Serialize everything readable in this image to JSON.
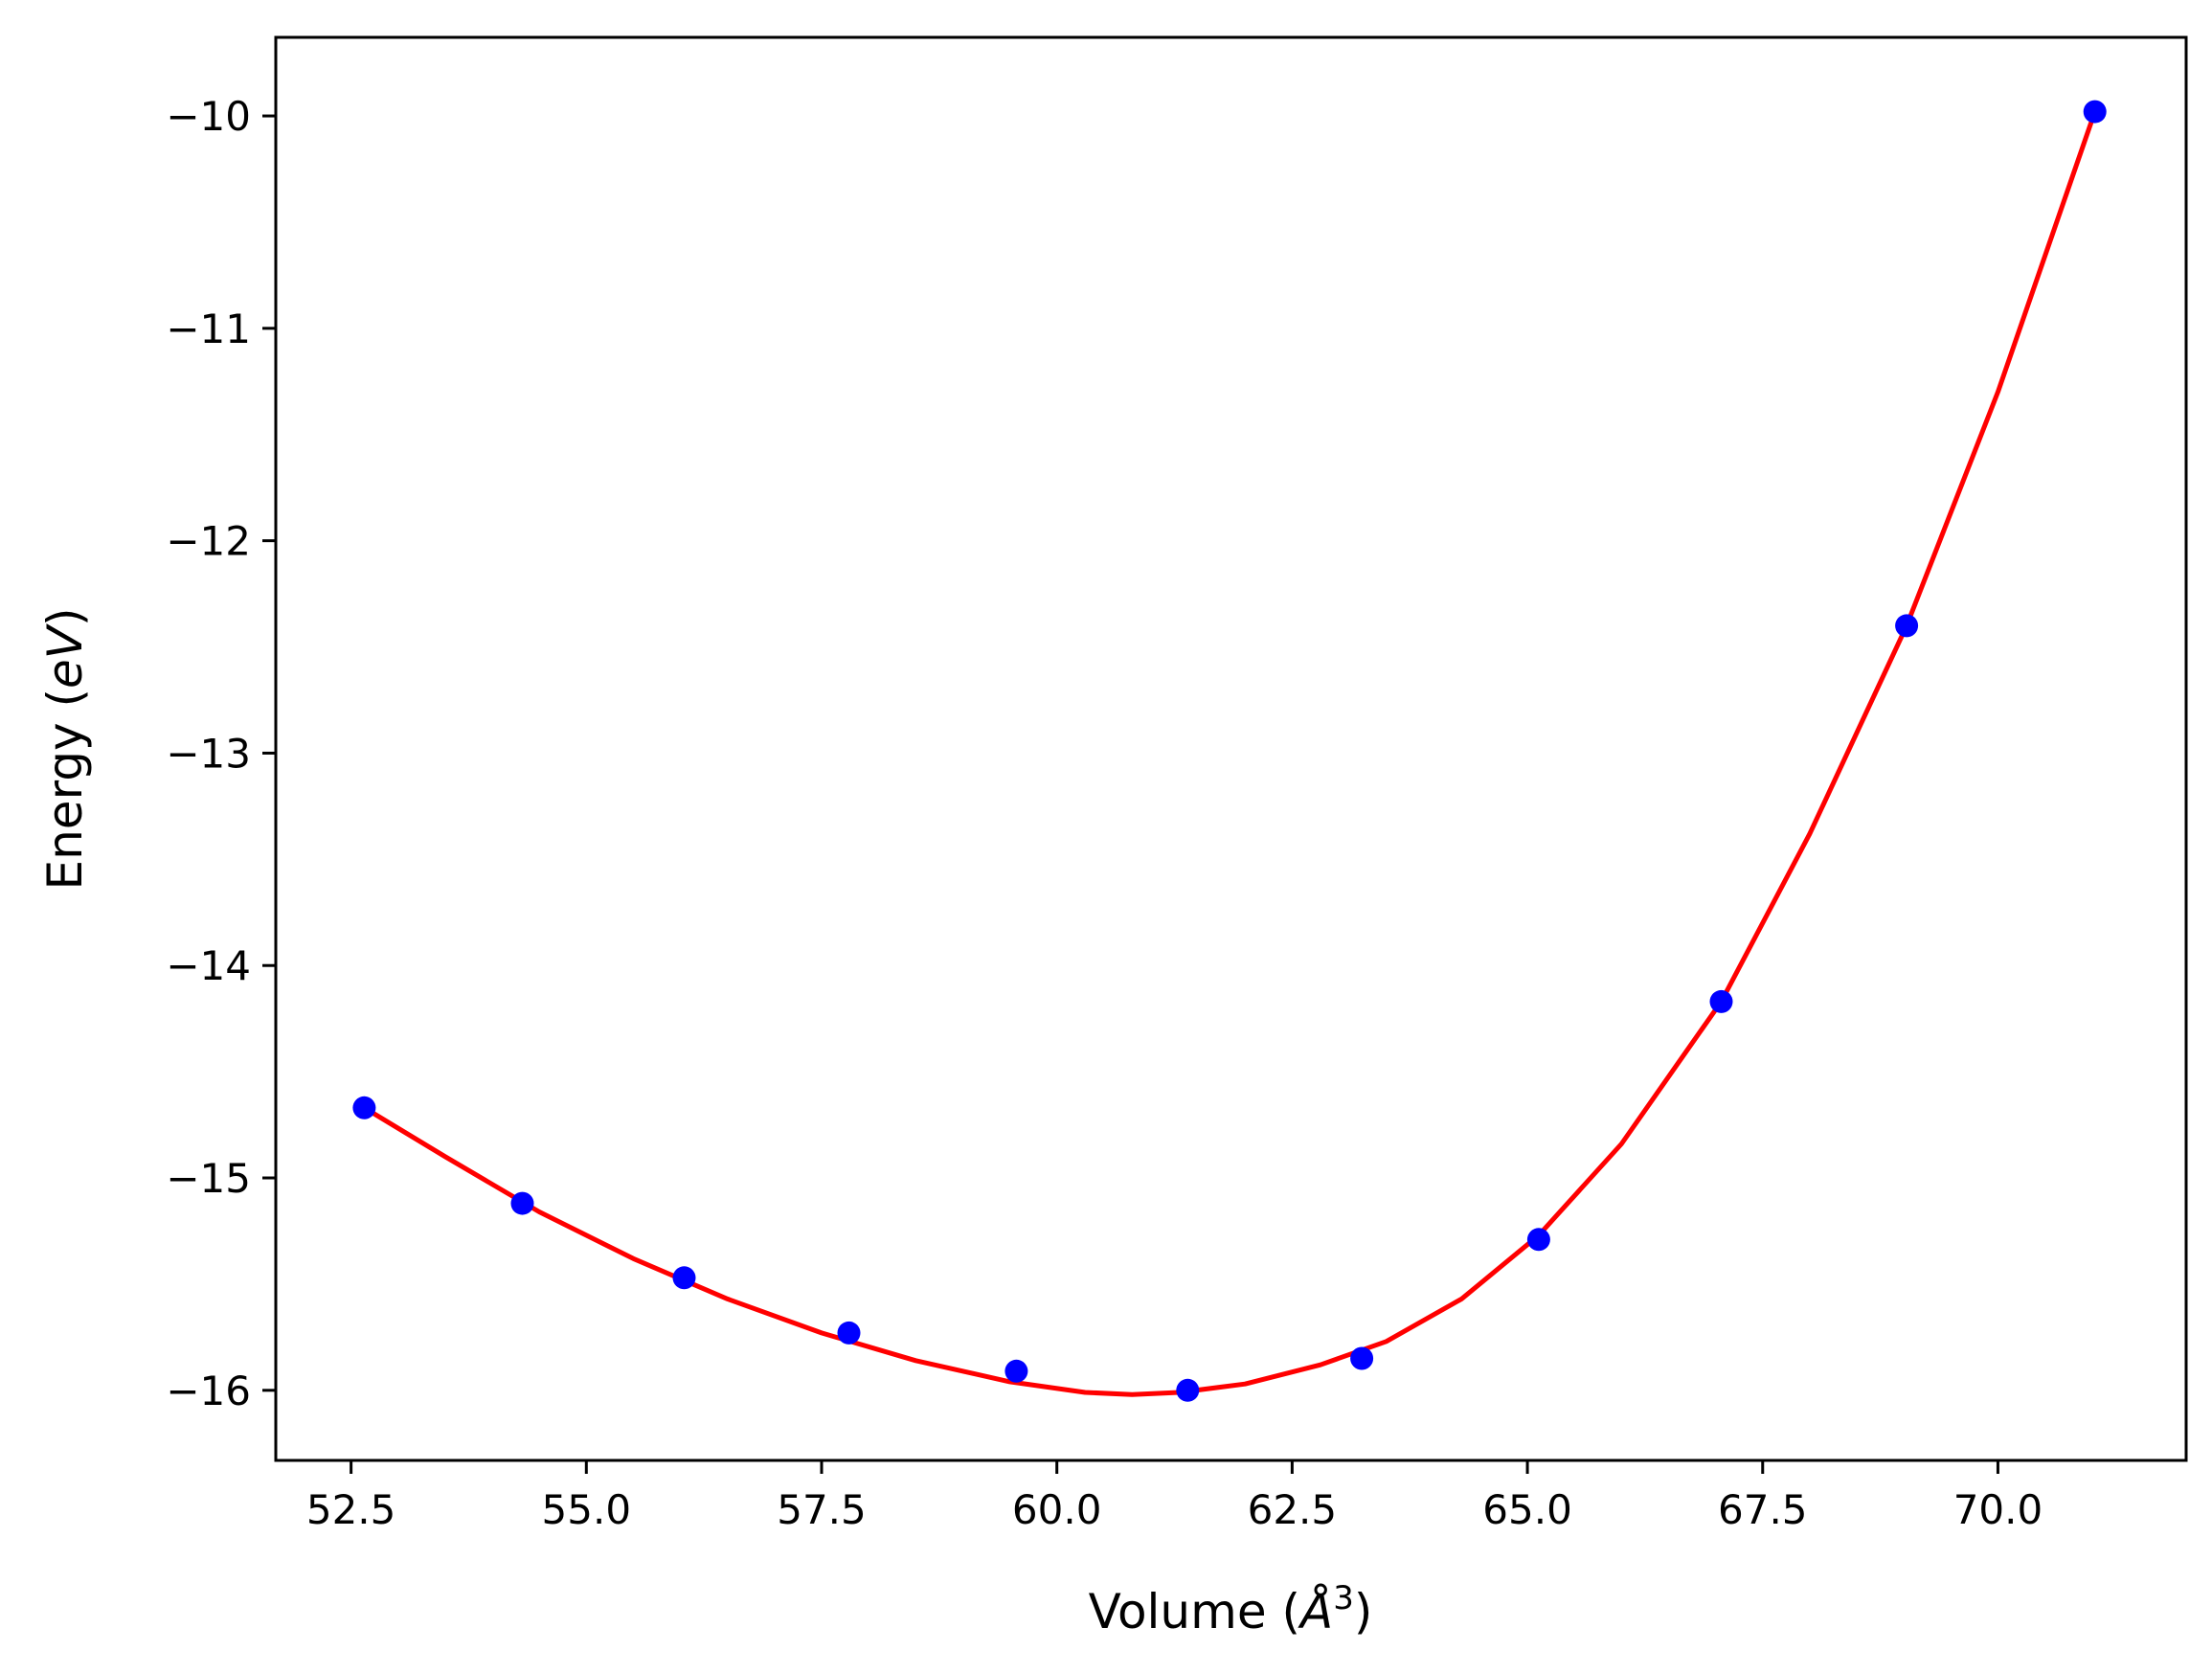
{
  "chart_data": {
    "type": "scatter",
    "xlabel": {
      "prefix": "Volume (",
      "unit_symbol": "Å",
      "unit_power": "3",
      "suffix": ")"
    },
    "ylabel": {
      "prefix": "Energy (",
      "unit": "eV",
      "suffix": ")"
    },
    "xlim": [
      51.7,
      72.0
    ],
    "ylim": [
      -16.33,
      -9.63
    ],
    "xticks": [
      52.5,
      55.0,
      57.5,
      60.0,
      62.5,
      65.0,
      67.5,
      70.0
    ],
    "xtick_labels": [
      "52.5",
      "55.0",
      "57.5",
      "60.0",
      "62.5",
      "65.0",
      "67.5",
      "70.0"
    ],
    "yticks": [
      -10,
      -11,
      -12,
      -13,
      -14,
      -15,
      -16
    ],
    "ytick_labels": [
      "−10",
      "−11",
      "−12",
      "−13",
      "−14",
      "−15",
      "−16"
    ],
    "grid": false,
    "series": [
      {
        "kind": "scatter",
        "color": "#0000ff",
        "x": [
          52.64,
          54.32,
          56.04,
          57.79,
          59.57,
          61.39,
          63.24,
          65.12,
          67.06,
          69.03,
          71.03
        ],
        "y": [
          -14.67,
          -15.12,
          -15.47,
          -15.73,
          -15.91,
          -16.0,
          -15.85,
          -15.29,
          -14.17,
          -12.4,
          -9.98
        ]
      },
      {
        "kind": "line",
        "color": "#ff0000",
        "x": [
          52.64,
          53.5,
          54.5,
          55.5,
          56.5,
          57.5,
          58.5,
          59.5,
          60.3,
          60.8,
          61.3,
          62.0,
          62.8,
          63.5,
          64.3,
          65.12,
          66.0,
          67.06,
          68.0,
          69.03,
          70.0,
          71.03
        ],
        "y": [
          -14.67,
          -14.9,
          -15.16,
          -15.38,
          -15.57,
          -15.73,
          -15.86,
          -15.96,
          -16.01,
          -16.02,
          -16.01,
          -15.97,
          -15.88,
          -15.77,
          -15.57,
          -15.27,
          -14.84,
          -14.17,
          -13.38,
          -12.4,
          -11.3,
          -9.98
        ]
      }
    ]
  }
}
